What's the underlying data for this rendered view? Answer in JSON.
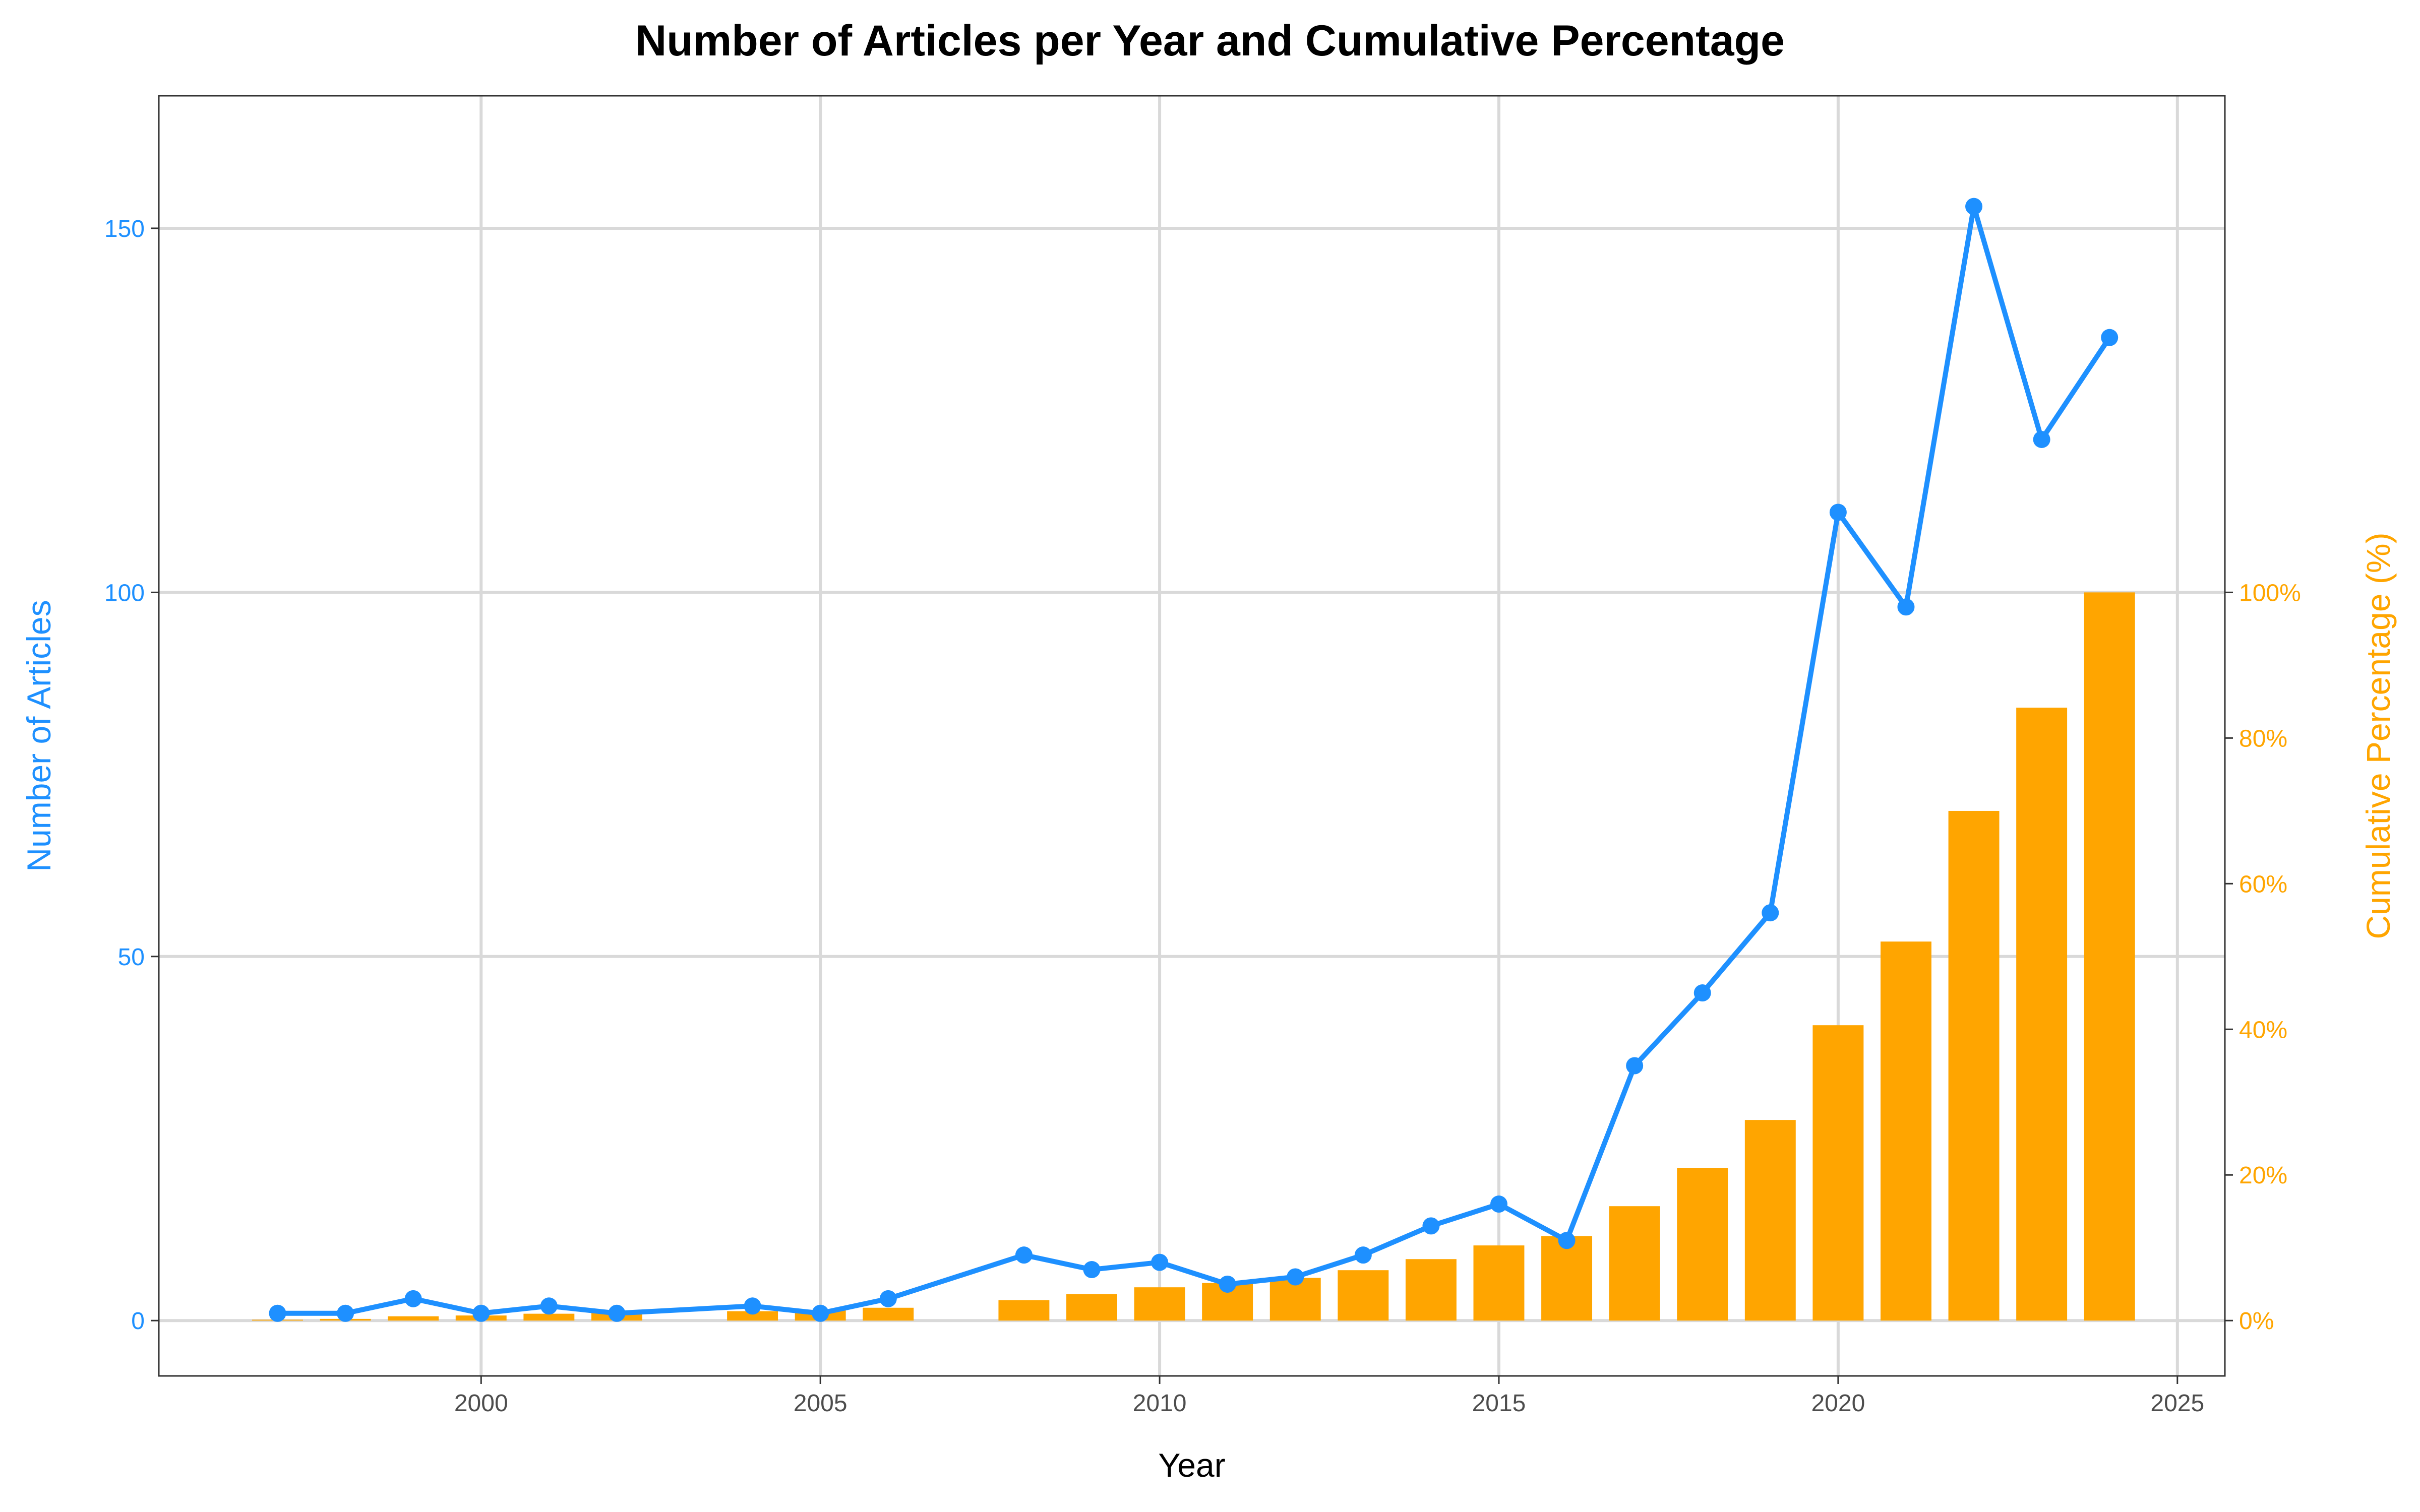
{
  "chart_data": {
    "type": "bar+line",
    "title": "Number of Articles per Year and Cumulative Percentage",
    "xlabel": "Year",
    "ylabel_left": "Number of Articles",
    "ylabel_right": "Cumulative Percentage (%)",
    "xlim": [
      1995.25,
      2025.7
    ],
    "ylim_left": [
      -7.6,
      168.2
    ],
    "ylim_right": [
      -7.6,
      168.2
    ],
    "x_ticks": [
      2000,
      2005,
      2010,
      2015,
      2020,
      2025
    ],
    "x_tick_labels": [
      "2000",
      "2005",
      "2010",
      "2015",
      "2020",
      "2025"
    ],
    "y_left_ticks": [
      0,
      50,
      100,
      150
    ],
    "y_left_tick_labels": [
      "0",
      "50",
      "100",
      "150"
    ],
    "y_right_ticks": [
      0,
      20,
      40,
      60,
      80,
      100
    ],
    "y_right_tick_labels": [
      "0%",
      "20%",
      "40%",
      "60%",
      "80%",
      "100%"
    ],
    "grid": true,
    "colors": {
      "line": "#1E90FF",
      "bars": "#FFA500",
      "grid": "#D9D9D9"
    },
    "years": [
      1997,
      1998,
      1999,
      2000,
      2001,
      2002,
      2004,
      2005,
      2006,
      2008,
      2009,
      2010,
      2011,
      2012,
      2013,
      2014,
      2015,
      2016,
      2017,
      2018,
      2019,
      2020,
      2021,
      2022,
      2023,
      2024
    ],
    "series": [
      {
        "type": "line",
        "axis": "left",
        "values": [
          1,
          1,
          3,
          1,
          2,
          1,
          2,
          1,
          3,
          9,
          7,
          8,
          5,
          6,
          9,
          13,
          16,
          11,
          35,
          45,
          56,
          111,
          98,
          153,
          121,
          135
        ]
      },
      {
        "type": "bar",
        "axis": "right",
        "values": [
          0.12,
          0.23,
          0.59,
          0.7,
          0.94,
          1.06,
          1.29,
          1.41,
          1.76,
          2.81,
          3.63,
          4.57,
          5.16,
          5.86,
          6.92,
          8.44,
          10.32,
          11.61,
          15.71,
          20.98,
          27.55,
          40.56,
          52.05,
          69.99,
          84.17,
          100
        ]
      }
    ]
  }
}
